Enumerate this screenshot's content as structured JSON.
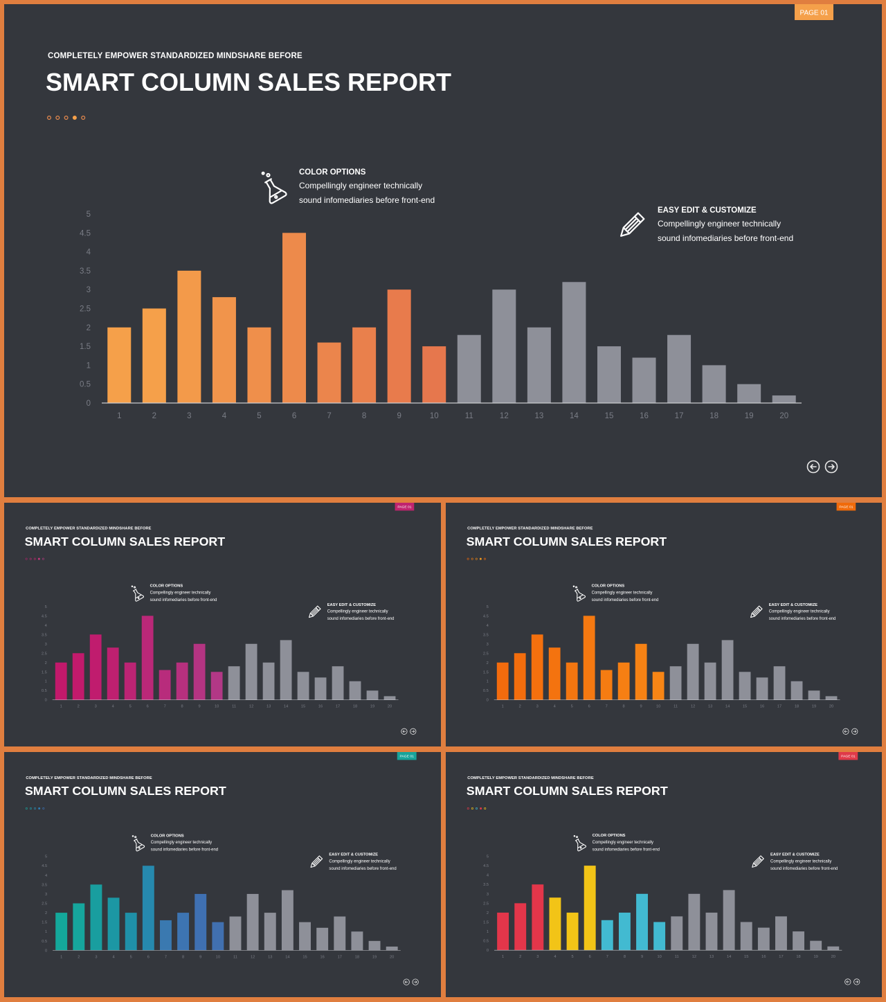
{
  "template": {
    "badge": "PAGE 01",
    "kicker": "COMPLETELY  EMPOWER  STANDARDIZED  MINDSHARE  BEFORE",
    "title": "SMART COLUMN SALES REPORT",
    "callouts": [
      {
        "icon": "flask-icon",
        "heading": "COLOR OPTIONS",
        "line1": "Compellingly engineer technically",
        "line2": "sound infomediaries before front-end"
      },
      {
        "icon": "pencil-icon",
        "heading": "EASY EDIT  & CUSTOMIZE",
        "line1": "Compellingly engineer technically",
        "line2": "sound infomediaries before front-end"
      }
    ],
    "nav": [
      {
        "icon": "arrow-left-icon"
      },
      {
        "icon": "arrow-right-icon"
      }
    ]
  },
  "chart_data": {
    "type": "bar",
    "categories": [
      "1",
      "2",
      "3",
      "4",
      "5",
      "6",
      "7",
      "8",
      "9",
      "10",
      "11",
      "12",
      "13",
      "14",
      "15",
      "16",
      "17",
      "18",
      "19",
      "20"
    ],
    "values": [
      2,
      2.5,
      3.5,
      2.8,
      2,
      4.5,
      1.6,
      2,
      3,
      1.5,
      1.8,
      3,
      2,
      3.2,
      1.5,
      1.2,
      1.8,
      1,
      0.5,
      0.2
    ],
    "ylim": [
      0,
      5
    ],
    "yticks": [
      "0",
      "0.5",
      "1",
      "1.5",
      "2",
      "2.5",
      "3",
      "3.5",
      "4",
      "4.5",
      "5"
    ],
    "grid": false,
    "gray_color": "#8E9099"
  },
  "variants": [
    {
      "name": "orange",
      "badge_color": "#F5A04A",
      "dots": [
        "#E98B4E",
        "#E98B4E",
        "#E98B4E",
        "#F5A04A",
        "#E98B4E"
      ],
      "bar_colors": [
        "#F5A04A",
        "#F5A04A",
        "#F39A4A",
        "#F1944B",
        "#EF8F4B",
        "#ED8A4B",
        "#EB854C",
        "#E9804C",
        "#E87B4C",
        "#E6774D"
      ]
    },
    {
      "name": "magenta",
      "badge_color": "#C0246E",
      "dots": [
        "#A8246A",
        "#B42A70",
        "#C0246E",
        "#C23A7E",
        "#B03A7E"
      ],
      "bar_colors": [
        "#C2196B",
        "#C21A6C",
        "#C01C6E",
        "#BE2070",
        "#BC2474",
        "#BA2878",
        "#B82C7C",
        "#B6307E",
        "#B43482",
        "#B23886"
      ]
    },
    {
      "name": "bright-orange",
      "badge_color": "#F06A0A",
      "dots": [
        "#F06A0A",
        "#F07A10",
        "#F08A18",
        "#F09A20",
        "#F06A0A"
      ],
      "bar_colors": [
        "#F36B0D",
        "#F36D0D",
        "#F4700E",
        "#F4730F",
        "#F47610",
        "#F57911",
        "#F57C12",
        "#F67F13",
        "#F68214",
        "#F78515"
      ]
    },
    {
      "name": "teal",
      "badge_color": "#18A39A",
      "dots": [
        "#1AA39B",
        "#1E98A8",
        "#2A8BB0",
        "#2F7DB4",
        "#3A6FB0"
      ],
      "bar_colors": [
        "#14A89B",
        "#16A69D",
        "#199E9F",
        "#1C97A4",
        "#1F90A8",
        "#2689AE",
        "#3A79B0",
        "#3D74B2",
        "#3F70B2",
        "#4170B0"
      ]
    },
    {
      "name": "multicolor",
      "badge_color": "#E03A49",
      "dots": [
        "#E03A49",
        "#F2C417",
        "#42B9D0",
        "#E03A49",
        "#F2C417"
      ],
      "bar_colors": [
        "#E3364A",
        "#E3364A",
        "#E3364A",
        "#F2C417",
        "#F2C417",
        "#F2C417",
        "#42BAD1",
        "#42BAD1",
        "#42BAD1",
        "#42BAD1"
      ]
    }
  ]
}
